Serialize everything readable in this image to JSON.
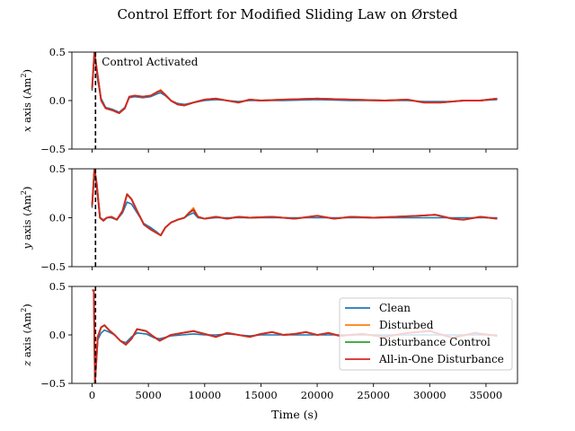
{
  "chart_data": {
    "type": "line",
    "title": "Control Effort for Modified Sliding Law on Ørsted",
    "xlabel": "Time (s)",
    "xlim": [
      -1800,
      37800
    ],
    "xticks": [
      0,
      5000,
      10000,
      15000,
      20000,
      25000,
      30000,
      35000
    ],
    "xtick_labels": [
      "0",
      "5000",
      "10000",
      "15000",
      "20000",
      "25000",
      "30000",
      "35000"
    ],
    "yticks": [
      -0.5,
      0.0,
      0.5
    ],
    "ytick_labels": [
      "−0.5",
      "0.0",
      "0.5"
    ],
    "annotation": {
      "text": "Control Activated",
      "x": 300
    },
    "legend": {
      "placement": "lower right of bottom panel",
      "entries": [
        {
          "name": "Clean",
          "color": "#1f77b4"
        },
        {
          "name": "Disturbed",
          "color": "#ff7f0e"
        },
        {
          "name": "Disturbance Control",
          "color": "#2ca02c"
        },
        {
          "name": "All-in-One Disturbance",
          "color": "#d62728"
        }
      ]
    },
    "panels": [
      {
        "axis": "x",
        "ylabel_prefix": "x axis (Am",
        "ylabel_sup": "2",
        "ylabel_suffix": ")",
        "ylim": [
          -0.5,
          0.5
        ],
        "x": [
          0,
          200,
          500,
          800,
          1200,
          1800,
          2400,
          2900,
          3300,
          3800,
          4500,
          5200,
          5800,
          6100,
          6500,
          7000,
          7600,
          8200,
          9000,
          10000,
          11000,
          12000,
          13000,
          14000,
          15000,
          17000,
          20000,
          23000,
          26000,
          28000,
          29500,
          31000,
          32000,
          33000,
          34500,
          36000
        ],
        "series": [
          {
            "name": "Clean",
            "values": [
              0.1,
              0.5,
              0.2,
              0.02,
              -0.07,
              -0.09,
              -0.12,
              -0.07,
              0.03,
              0.04,
              0.03,
              0.04,
              0.07,
              0.08,
              0.05,
              0.0,
              -0.03,
              -0.04,
              -0.02,
              0.0,
              0.01,
              0.0,
              -0.01,
              0.0,
              0.0,
              0.0,
              0.01,
              0.0,
              0.0,
              0.0,
              -0.01,
              -0.01,
              -0.01,
              0.0,
              0.0,
              0.01
            ]
          },
          {
            "name": "Disturbed",
            "values": [
              0.12,
              0.5,
              0.25,
              0.0,
              -0.08,
              -0.1,
              -0.13,
              -0.08,
              0.04,
              0.05,
              0.04,
              0.05,
              0.09,
              0.11,
              0.06,
              0.0,
              -0.04,
              -0.05,
              -0.02,
              0.01,
              0.02,
              0.0,
              -0.02,
              0.01,
              0.0,
              0.01,
              0.02,
              0.01,
              0.0,
              0.01,
              -0.02,
              -0.02,
              -0.01,
              0.0,
              0.0,
              0.02
            ]
          },
          {
            "name": "Disturbance Control",
            "values": [
              0.12,
              0.5,
              0.25,
              0.0,
              -0.08,
              -0.1,
              -0.13,
              -0.08,
              0.04,
              0.05,
              0.04,
              0.05,
              0.09,
              0.1,
              0.06,
              0.0,
              -0.04,
              -0.05,
              -0.02,
              0.01,
              0.02,
              0.0,
              -0.02,
              0.01,
              0.0,
              0.01,
              0.02,
              0.01,
              0.0,
              0.01,
              -0.02,
              -0.02,
              -0.01,
              0.0,
              0.0,
              0.02
            ]
          },
          {
            "name": "All-in-One Disturbance",
            "values": [
              0.12,
              0.5,
              0.25,
              0.0,
              -0.08,
              -0.1,
              -0.13,
              -0.08,
              0.04,
              0.05,
              0.04,
              0.05,
              0.09,
              0.1,
              0.06,
              0.0,
              -0.04,
              -0.05,
              -0.02,
              0.01,
              0.02,
              0.0,
              -0.02,
              0.01,
              0.0,
              0.01,
              0.02,
              0.01,
              0.0,
              0.01,
              -0.02,
              -0.02,
              -0.01,
              0.0,
              0.0,
              0.02
            ]
          }
        ]
      },
      {
        "axis": "y",
        "ylabel_prefix": "y axis (Am",
        "ylabel_sup": "2",
        "ylabel_suffix": ")",
        "ylim": [
          -0.5,
          0.5
        ],
        "x": [
          0,
          200,
          400,
          700,
          1000,
          1300,
          1700,
          2200,
          2700,
          3100,
          3500,
          4000,
          4600,
          5200,
          5800,
          6100,
          6500,
          7000,
          7600,
          8200,
          8600,
          9000,
          9400,
          10000,
          11000,
          12000,
          13000,
          14000,
          16000,
          18000,
          20000,
          21500,
          23000,
          25000,
          27000,
          29000,
          30500,
          32000,
          33000,
          34500,
          36000
        ],
        "series": [
          {
            "name": "Clean",
            "values": [
              0.1,
              0.5,
              0.3,
              0.0,
              -0.02,
              0.0,
              0.0,
              -0.02,
              0.05,
              0.16,
              0.14,
              0.05,
              -0.06,
              -0.1,
              -0.15,
              -0.18,
              -0.1,
              -0.05,
              -0.02,
              0.0,
              0.03,
              0.05,
              0.0,
              -0.01,
              0.0,
              0.0,
              0.0,
              0.0,
              0.0,
              0.0,
              0.0,
              0.0,
              0.0,
              0.0,
              0.0,
              0.0,
              0.0,
              0.0,
              0.0,
              0.0,
              0.0
            ]
          },
          {
            "name": "Disturbed",
            "values": [
              0.12,
              0.5,
              0.35,
              0.0,
              -0.03,
              0.0,
              0.01,
              -0.02,
              0.07,
              0.24,
              0.19,
              0.07,
              -0.07,
              -0.12,
              -0.16,
              -0.18,
              -0.1,
              -0.05,
              -0.02,
              0.0,
              0.05,
              0.1,
              0.01,
              -0.01,
              0.01,
              -0.01,
              0.01,
              0.0,
              0.01,
              -0.01,
              0.02,
              -0.01,
              0.01,
              0.0,
              0.01,
              0.02,
              0.03,
              -0.01,
              -0.02,
              0.01,
              -0.01
            ]
          },
          {
            "name": "Disturbance Control",
            "values": [
              0.12,
              0.5,
              0.35,
              0.0,
              -0.03,
              0.0,
              0.01,
              -0.02,
              0.07,
              0.24,
              0.19,
              0.07,
              -0.07,
              -0.12,
              -0.16,
              -0.18,
              -0.1,
              -0.05,
              -0.02,
              0.0,
              0.05,
              0.08,
              0.01,
              -0.01,
              0.01,
              -0.01,
              0.01,
              0.0,
              0.01,
              -0.01,
              0.02,
              -0.01,
              0.01,
              0.0,
              0.01,
              0.02,
              0.03,
              -0.01,
              -0.02,
              0.01,
              -0.01
            ]
          },
          {
            "name": "All-in-One Disturbance",
            "values": [
              0.12,
              0.5,
              0.35,
              0.0,
              -0.03,
              0.0,
              0.01,
              -0.02,
              0.07,
              0.24,
              0.19,
              0.07,
              -0.07,
              -0.12,
              -0.16,
              -0.18,
              -0.1,
              -0.05,
              -0.02,
              0.0,
              0.05,
              0.08,
              0.01,
              -0.01,
              0.01,
              -0.01,
              0.01,
              0.0,
              0.01,
              -0.01,
              0.02,
              -0.01,
              0.01,
              0.0,
              0.01,
              0.02,
              0.03,
              -0.01,
              -0.02,
              0.01,
              -0.01
            ]
          }
        ]
      },
      {
        "axis": "z",
        "ylabel_prefix": "z axis (Am",
        "ylabel_sup": "2",
        "ylabel_suffix": ")",
        "ylim": [
          -0.5,
          0.5
        ],
        "x": [
          0,
          150,
          250,
          500,
          800,
          1100,
          1500,
          2000,
          2500,
          3000,
          3500,
          4000,
          4800,
          5500,
          6000,
          7000,
          8000,
          9000,
          10000,
          11000,
          12000,
          13000,
          14000,
          15000,
          16000,
          17000,
          18000,
          19000,
          20000,
          21000,
          22000,
          24000,
          26000,
          28000,
          30000,
          32000,
          34000,
          36000
        ],
        "series": [
          {
            "name": "Clean",
            "values": [
              0.46,
              0.46,
              -0.5,
              -0.05,
              0.02,
              0.05,
              0.03,
              0.0,
              -0.06,
              -0.08,
              -0.02,
              0.02,
              0.01,
              -0.03,
              -0.04,
              -0.01,
              0.0,
              0.01,
              0.0,
              0.0,
              0.01,
              0.0,
              -0.01,
              0.0,
              0.0,
              0.0,
              0.0,
              0.0,
              0.0,
              0.0,
              0.0,
              0.0,
              0.0,
              0.0,
              0.0,
              0.0,
              0.0,
              0.0
            ]
          },
          {
            "name": "Disturbed",
            "values": [
              0.46,
              0.46,
              -0.5,
              -0.02,
              0.08,
              0.1,
              0.05,
              0.0,
              -0.06,
              -0.1,
              -0.04,
              0.06,
              0.04,
              -0.02,
              -0.06,
              0.0,
              0.02,
              0.04,
              0.01,
              -0.02,
              0.02,
              0.0,
              -0.02,
              0.01,
              0.03,
              0.0,
              0.01,
              0.03,
              0.0,
              0.02,
              -0.01,
              0.01,
              -0.02,
              0.02,
              0.04,
              -0.03,
              0.02,
              -0.01
            ]
          },
          {
            "name": "Disturbance Control",
            "values": [
              0.46,
              0.46,
              -0.5,
              -0.02,
              0.08,
              0.1,
              0.05,
              0.0,
              -0.06,
              -0.1,
              -0.04,
              0.06,
              0.04,
              -0.02,
              -0.06,
              0.0,
              0.02,
              0.04,
              0.01,
              -0.02,
              0.02,
              0.0,
              -0.02,
              0.01,
              0.03,
              0.0,
              0.01,
              0.03,
              0.0,
              0.02,
              -0.01,
              0.01,
              -0.02,
              0.02,
              0.04,
              -0.03,
              0.02,
              -0.01
            ]
          },
          {
            "name": "All-in-One Disturbance",
            "values": [
              0.46,
              0.46,
              -0.5,
              -0.02,
              0.08,
              0.1,
              0.05,
              0.0,
              -0.06,
              -0.1,
              -0.04,
              0.06,
              0.04,
              -0.02,
              -0.06,
              0.0,
              0.02,
              0.04,
              0.01,
              -0.02,
              0.02,
              0.0,
              -0.02,
              0.01,
              0.03,
              0.0,
              0.01,
              0.03,
              0.0,
              0.02,
              -0.01,
              0.01,
              -0.02,
              0.02,
              0.04,
              -0.03,
              0.02,
              -0.01
            ]
          }
        ]
      }
    ]
  }
}
